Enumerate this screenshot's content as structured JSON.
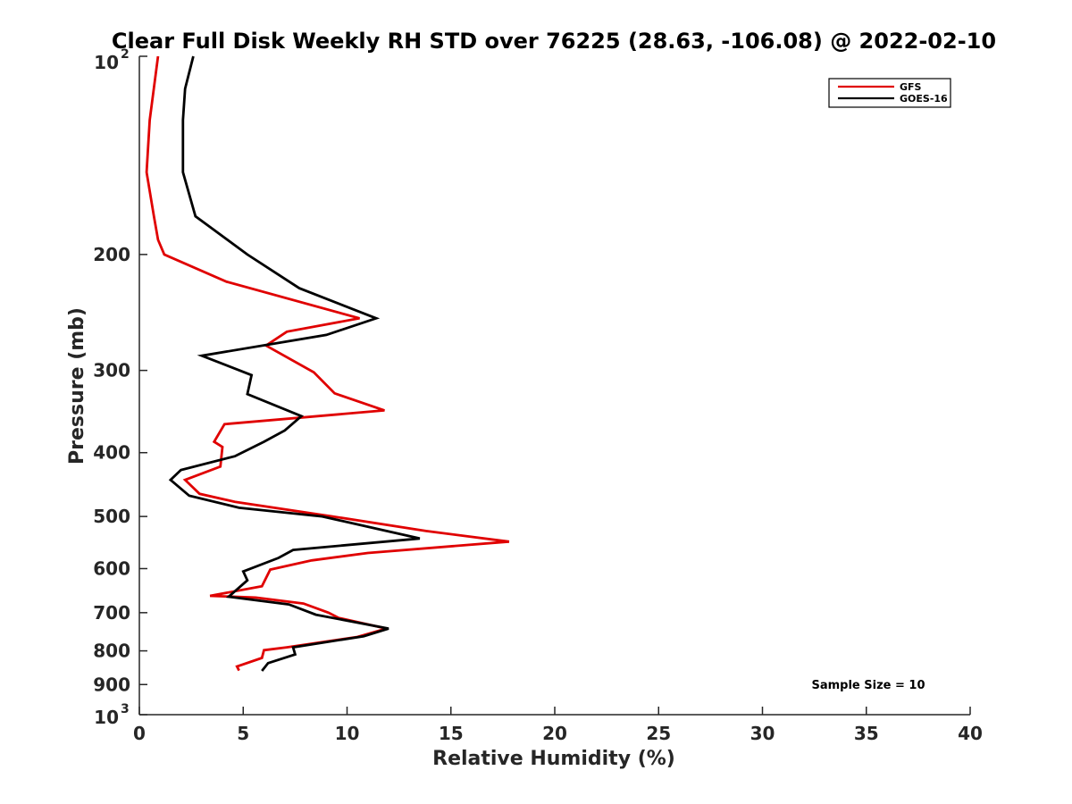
{
  "chart_data": {
    "type": "line",
    "title": "Clear Full Disk Weekly RH STD over 76225 (28.63, -106.08) @ 2022-02-10",
    "xlabel": "Relative Humidity (%)",
    "ylabel": "Pressure (mb)",
    "xlim": [
      0,
      40
    ],
    "ylim": [
      100,
      1000
    ],
    "y_scale": "log",
    "y_reversed": true,
    "x_ticks": [
      "0",
      "5",
      "10",
      "15",
      "20",
      "25",
      "30",
      "35",
      "40"
    ],
    "x_tick_values": [
      0,
      5,
      10,
      15,
      20,
      25,
      30,
      35,
      40
    ],
    "y_ticks": [
      "200",
      "300",
      "400",
      "500",
      "600",
      "700",
      "800",
      "900"
    ],
    "y_tick_values": [
      200,
      300,
      400,
      500,
      600,
      700,
      800,
      900
    ],
    "y_tick_top": {
      "base": "10",
      "exp": "2",
      "value": 100
    },
    "y_tick_bottom": {
      "base": "10",
      "exp": "3",
      "value": 1000
    },
    "grid": false,
    "legend_position": "top-right",
    "annotation": "Sample Size = 10",
    "series": [
      {
        "name": "GFS",
        "color": "#e00000",
        "points": [
          [
            0.9,
            100
          ],
          [
            0.5,
            125
          ],
          [
            0.35,
            150
          ],
          [
            0.7,
            175
          ],
          [
            0.9,
            190
          ],
          [
            1.2,
            200
          ],
          [
            4.2,
            220
          ],
          [
            10.6,
            250
          ],
          [
            7.1,
            262
          ],
          [
            6.1,
            275
          ],
          [
            8.4,
            302
          ],
          [
            9.4,
            325
          ],
          [
            11.8,
            345
          ],
          [
            4.1,
            362
          ],
          [
            3.6,
            385
          ],
          [
            4.0,
            392
          ],
          [
            3.9,
            420
          ],
          [
            2.2,
            440
          ],
          [
            2.9,
            462
          ],
          [
            4.6,
            475
          ],
          [
            9.3,
            500
          ],
          [
            13.8,
            526
          ],
          [
            17.8,
            546
          ],
          [
            11.0,
            568
          ],
          [
            8.3,
            583
          ],
          [
            6.3,
            602
          ],
          [
            5.9,
            638
          ],
          [
            3.4,
            660
          ],
          [
            5.6,
            664
          ],
          [
            7.9,
            678
          ],
          [
            9.1,
            700
          ],
          [
            9.6,
            713
          ],
          [
            11.9,
            740
          ],
          [
            10.5,
            762
          ],
          [
            7.1,
            790
          ],
          [
            6.0,
            798
          ],
          [
            5.9,
            820
          ],
          [
            4.7,
            845
          ],
          [
            4.8,
            857
          ]
        ]
      },
      {
        "name": "GOES-16",
        "color": "#000000",
        "points": [
          [
            2.6,
            100
          ],
          [
            2.2,
            112
          ],
          [
            2.1,
            125
          ],
          [
            2.1,
            150
          ],
          [
            2.7,
            175
          ],
          [
            5.2,
            200
          ],
          [
            7.7,
            225
          ],
          [
            11.4,
            250
          ],
          [
            9.0,
            265
          ],
          [
            3.0,
            285
          ],
          [
            5.4,
            305
          ],
          [
            5.2,
            326
          ],
          [
            7.8,
            352
          ],
          [
            7.0,
            370
          ],
          [
            6.0,
            385
          ],
          [
            4.6,
            405
          ],
          [
            2.0,
            425
          ],
          [
            1.5,
            440
          ],
          [
            2.4,
            465
          ],
          [
            4.8,
            485
          ],
          [
            8.8,
            500
          ],
          [
            13.5,
            540
          ],
          [
            7.4,
            562
          ],
          [
            6.7,
            578
          ],
          [
            5.0,
            606
          ],
          [
            5.2,
            625
          ],
          [
            4.3,
            662
          ],
          [
            7.2,
            680
          ],
          [
            8.5,
            705
          ],
          [
            12.0,
            740
          ],
          [
            10.8,
            760
          ],
          [
            7.4,
            790
          ],
          [
            7.5,
            810
          ],
          [
            6.2,
            835
          ],
          [
            5.9,
            858
          ]
        ]
      }
    ]
  }
}
